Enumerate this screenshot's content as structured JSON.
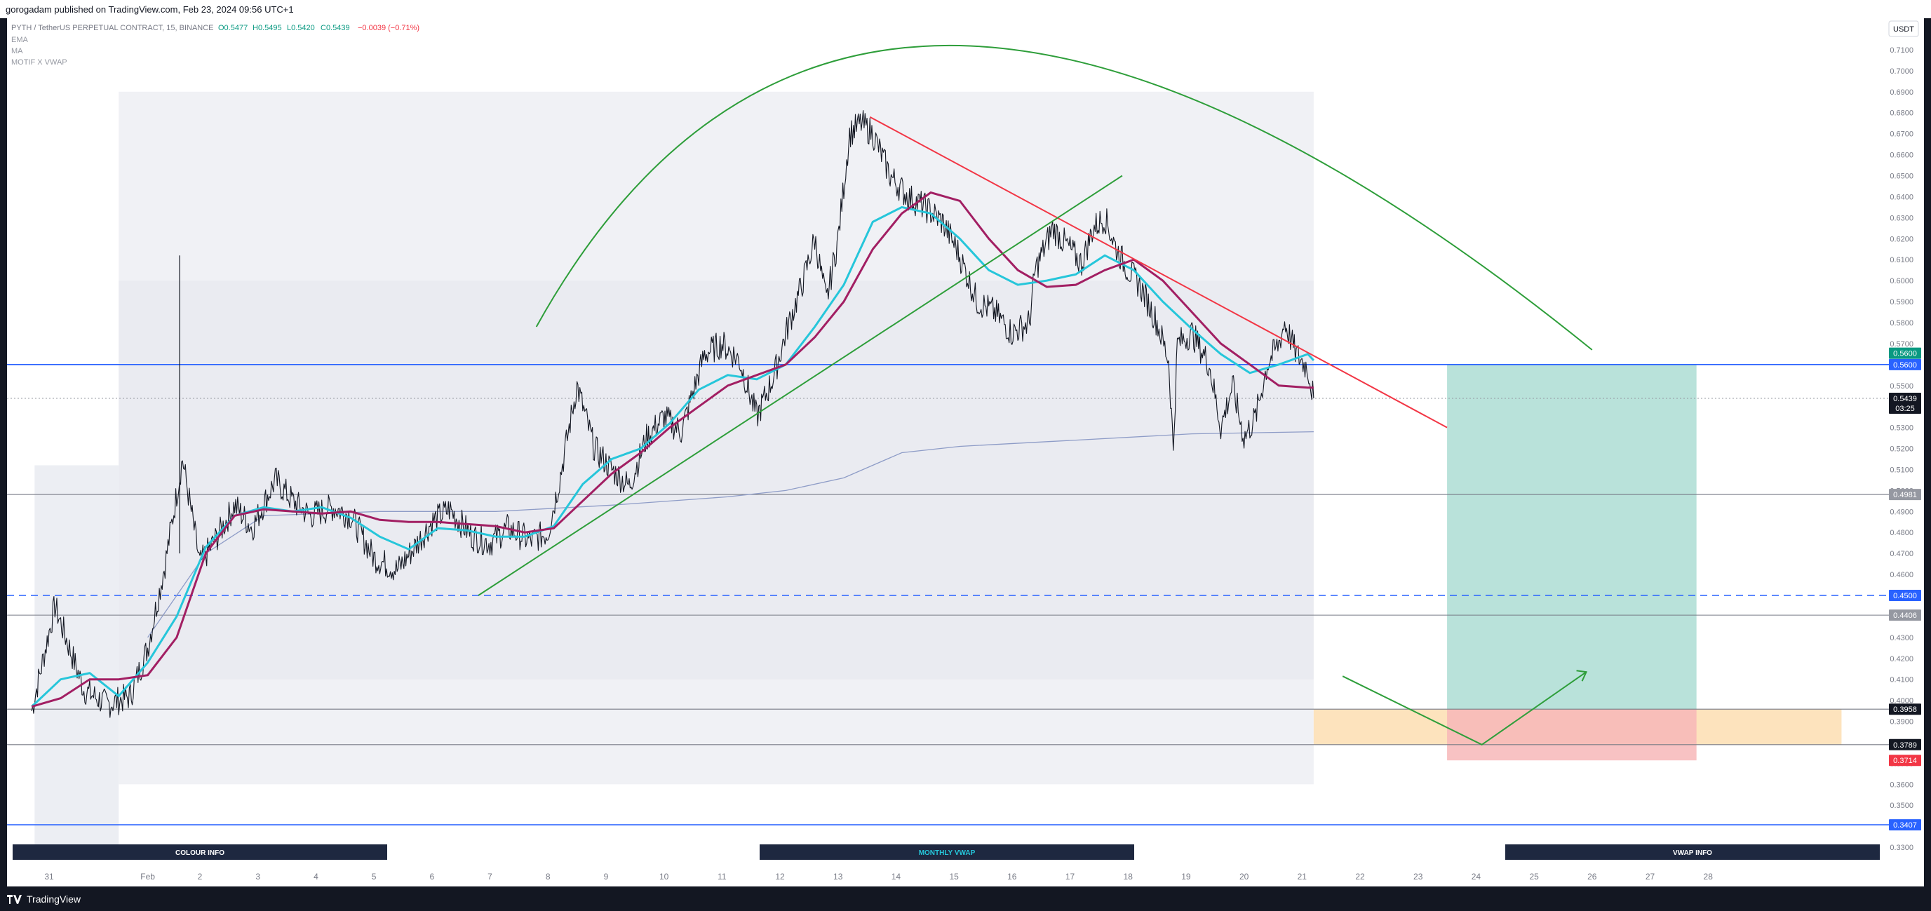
{
  "header": {
    "published": "gorogadam published on TradingView.com, Feb 23, 2024 09:56 UTC+1"
  },
  "legend": {
    "symbol": "PYTH / TetherUS PERPETUAL CONTRACT, 15, BINANCE",
    "open": "O0.5477",
    "high": "H0.5495",
    "low": "L0.5420",
    "close": "C0.5439",
    "change": "−0.0039 (−0.71%)",
    "indicators": [
      "EMA",
      "MA",
      "MOTIF X VWAP"
    ]
  },
  "currency": "USDT",
  "info_bars": [
    "COLOUR INFO",
    "MONTHLY VWAP",
    "VWAP INFO"
  ],
  "footer": {
    "brand": "TradingView"
  },
  "colors": {
    "price": "#131722",
    "ema": "#26c6da",
    "ma": "#a21f63",
    "vwap": "#8e9cc7",
    "trend_red": "#f23645",
    "trend_green": "#2e9e3a",
    "level_blue": "#2962ff",
    "target_zone": "#b9e2da",
    "stop_zone": "#f7b7b9",
    "demand_zone": "#fde3bd"
  },
  "chart_data": {
    "type": "line",
    "title": "PYTH / TetherUS PERPETUAL CONTRACT, 15, BINANCE",
    "x_ticks": [
      "31",
      "Feb",
      "2",
      "3",
      "4",
      "5",
      "6",
      "7",
      "8",
      "9",
      "10",
      "11",
      "12",
      "13",
      "14",
      "15",
      "16",
      "17",
      "18",
      "19",
      "20",
      "21",
      "22",
      "23",
      "24",
      "25",
      "26",
      "27",
      "28"
    ],
    "x_range": [
      30.3,
      29.3
    ],
    "ylim": [
      0.326,
      0.716
    ],
    "y_ticks": [
      "0.7100",
      "0.7000",
      "0.6900",
      "0.6800",
      "0.6700",
      "0.6600",
      "0.6500",
      "0.6400",
      "0.6300",
      "0.6200",
      "0.6100",
      "0.6000",
      "0.5900",
      "0.5800",
      "0.5700",
      "0.5600",
      "0.5500",
      "0.5400",
      "0.5300",
      "0.5200",
      "0.5100",
      "0.5000",
      "0.4900",
      "0.4800",
      "0.4700",
      "0.4600",
      "0.4500",
      "0.4400",
      "0.4300",
      "0.4200",
      "0.4100",
      "0.4000",
      "0.3900",
      "0.3800",
      "0.3700",
      "0.3600",
      "0.3500",
      "0.3400",
      "0.3300"
    ],
    "price_series": {
      "name": "PYTH/USDT",
      "points": [
        [
          30.0,
          0.395
        ],
        [
          30.4,
          0.445
        ],
        [
          30.9,
          0.405
        ],
        [
          31.3,
          0.398
        ],
        [
          31.7,
          0.402
        ],
        [
          32.0,
          0.425
        ],
        [
          32.3,
          0.465
        ],
        [
          32.6,
          0.515
        ],
        [
          32.9,
          0.465
        ],
        [
          33.2,
          0.478
        ],
        [
          33.5,
          0.493
        ],
        [
          33.8,
          0.482
        ],
        [
          34.2,
          0.505
        ],
        [
          34.5,
          0.495
        ],
        [
          34.8,
          0.488
        ],
        [
          35.2,
          0.492
        ],
        [
          35.5,
          0.488
        ],
        [
          35.9,
          0.468
        ],
        [
          36.3,
          0.462
        ],
        [
          36.6,
          0.473
        ],
        [
          36.9,
          0.485
        ],
        [
          37.2,
          0.491
        ],
        [
          37.6,
          0.478
        ],
        [
          37.9,
          0.475
        ],
        [
          38.2,
          0.482
        ],
        [
          38.6,
          0.476
        ],
        [
          38.9,
          0.48
        ],
        [
          39.1,
          0.505
        ],
        [
          39.4,
          0.55
        ],
        [
          39.7,
          0.52
        ],
        [
          40.0,
          0.51
        ],
        [
          40.3,
          0.502
        ],
        [
          40.6,
          0.525
        ],
        [
          40.9,
          0.535
        ],
        [
          41.2,
          0.528
        ],
        [
          41.6,
          0.565
        ],
        [
          41.9,
          0.57
        ],
        [
          42.2,
          0.562
        ],
        [
          42.5,
          0.535
        ],
        [
          42.8,
          0.555
        ],
        [
          43.0,
          0.575
        ],
        [
          43.3,
          0.6
        ],
        [
          43.5,
          0.62
        ],
        [
          43.7,
          0.59
        ],
        [
          43.9,
          0.62
        ],
        [
          44.1,
          0.67
        ],
        [
          44.3,
          0.675
        ],
        [
          44.5,
          0.67
        ],
        [
          44.8,
          0.65
        ],
        [
          45.1,
          0.64
        ],
        [
          45.4,
          0.635
        ],
        [
          45.7,
          0.628
        ],
        [
          45.95,
          0.615
        ],
        [
          46.3,
          0.59
        ],
        [
          46.6,
          0.585
        ],
        [
          46.9,
          0.575
        ],
        [
          47.2,
          0.58
        ],
        [
          47.3,
          0.605
        ],
        [
          47.6,
          0.625
        ],
        [
          47.9,
          0.615
        ],
        [
          48.1,
          0.608
        ],
        [
          48.3,
          0.625
        ],
        [
          48.5,
          0.63
        ],
        [
          48.7,
          0.615
        ],
        [
          48.9,
          0.605
        ],
        [
          49.1,
          0.598
        ],
        [
          49.4,
          0.58
        ],
        [
          49.6,
          0.562
        ],
        [
          49.68,
          0.52
        ],
        [
          49.75,
          0.57
        ],
        [
          50.0,
          0.575
        ],
        [
          50.3,
          0.56
        ],
        [
          50.5,
          0.53
        ],
        [
          50.7,
          0.55
        ],
        [
          50.9,
          0.525
        ],
        [
          51.1,
          0.535
        ],
        [
          51.3,
          0.56
        ],
        [
          51.5,
          0.57
        ],
        [
          51.6,
          0.58
        ],
        [
          51.8,
          0.565
        ],
        [
          52.0,
          0.558
        ],
        [
          52.1,
          0.5439
        ]
      ]
    },
    "ema_series": {
      "name": "EMA",
      "points": [
        [
          30.0,
          0.397
        ],
        [
          30.5,
          0.41
        ],
        [
          31.0,
          0.413
        ],
        [
          31.5,
          0.402
        ],
        [
          32.0,
          0.418
        ],
        [
          32.5,
          0.44
        ],
        [
          33.0,
          0.473
        ],
        [
          33.5,
          0.488
        ],
        [
          34.0,
          0.492
        ],
        [
          34.5,
          0.49
        ],
        [
          35.0,
          0.492
        ],
        [
          35.5,
          0.487
        ],
        [
          36.0,
          0.478
        ],
        [
          36.5,
          0.472
        ],
        [
          37.0,
          0.482
        ],
        [
          37.5,
          0.481
        ],
        [
          38.0,
          0.478
        ],
        [
          38.5,
          0.478
        ],
        [
          39.0,
          0.483
        ],
        [
          39.5,
          0.503
        ],
        [
          40.0,
          0.515
        ],
        [
          40.5,
          0.52
        ],
        [
          41.0,
          0.532
        ],
        [
          41.5,
          0.548
        ],
        [
          42.0,
          0.555
        ],
        [
          42.5,
          0.553
        ],
        [
          43.0,
          0.56
        ],
        [
          43.5,
          0.578
        ],
        [
          44.0,
          0.598
        ],
        [
          44.5,
          0.628
        ],
        [
          45.0,
          0.635
        ],
        [
          45.5,
          0.632
        ],
        [
          46.0,
          0.62
        ],
        [
          46.5,
          0.605
        ],
        [
          47.0,
          0.598
        ],
        [
          47.5,
          0.6
        ],
        [
          48.0,
          0.603
        ],
        [
          48.5,
          0.612
        ],
        [
          49.0,
          0.605
        ],
        [
          49.5,
          0.59
        ],
        [
          50.0,
          0.577
        ],
        [
          50.5,
          0.565
        ],
        [
          51.0,
          0.556
        ],
        [
          51.5,
          0.56
        ],
        [
          52.0,
          0.565
        ],
        [
          52.1,
          0.562
        ]
      ]
    },
    "ma_series": {
      "name": "MA",
      "points": [
        [
          30.0,
          0.397
        ],
        [
          30.5,
          0.401
        ],
        [
          31.0,
          0.41
        ],
        [
          31.5,
          0.41
        ],
        [
          32.0,
          0.412
        ],
        [
          32.5,
          0.43
        ],
        [
          33.0,
          0.47
        ],
        [
          33.5,
          0.488
        ],
        [
          34.0,
          0.491
        ],
        [
          34.5,
          0.49
        ],
        [
          35.0,
          0.489
        ],
        [
          35.5,
          0.49
        ],
        [
          36.0,
          0.486
        ],
        [
          36.5,
          0.485
        ],
        [
          37.0,
          0.485
        ],
        [
          37.5,
          0.484
        ],
        [
          38.0,
          0.483
        ],
        [
          38.5,
          0.48
        ],
        [
          39.0,
          0.482
        ],
        [
          39.5,
          0.495
        ],
        [
          40.0,
          0.508
        ],
        [
          40.5,
          0.518
        ],
        [
          41.0,
          0.53
        ],
        [
          41.5,
          0.54
        ],
        [
          42.0,
          0.55
        ],
        [
          42.5,
          0.555
        ],
        [
          43.0,
          0.56
        ],
        [
          43.5,
          0.573
        ],
        [
          44.0,
          0.59
        ],
        [
          44.5,
          0.615
        ],
        [
          45.0,
          0.632
        ],
        [
          45.5,
          0.642
        ],
        [
          46.0,
          0.638
        ],
        [
          46.5,
          0.62
        ],
        [
          47.0,
          0.605
        ],
        [
          47.5,
          0.597
        ],
        [
          48.0,
          0.598
        ],
        [
          48.5,
          0.605
        ],
        [
          49.0,
          0.61
        ],
        [
          49.5,
          0.6
        ],
        [
          50.0,
          0.585
        ],
        [
          50.5,
          0.57
        ],
        [
          51.0,
          0.56
        ],
        [
          51.5,
          0.55
        ],
        [
          52.0,
          0.549
        ],
        [
          52.1,
          0.549
        ]
      ]
    },
    "vwap_series": {
      "name": "Monthly VWAP",
      "points": [
        [
          32.0,
          0.43
        ],
        [
          33.0,
          0.47
        ],
        [
          34.0,
          0.488
        ],
        [
          36.0,
          0.49
        ],
        [
          38.0,
          0.49
        ],
        [
          40.0,
          0.493
        ],
        [
          42.0,
          0.497
        ],
        [
          43.0,
          0.5
        ],
        [
          44.0,
          0.506
        ],
        [
          45.0,
          0.518
        ],
        [
          46.0,
          0.521
        ],
        [
          48.0,
          0.524
        ],
        [
          50.0,
          0.527
        ],
        [
          52.1,
          0.528
        ]
      ]
    },
    "horizontal_levels": [
      {
        "value": 0.56,
        "style": "solid",
        "color": "#2962ff",
        "label": "0.5600"
      },
      {
        "value": 0.4981,
        "style": "solid",
        "color": "#787b86",
        "label": "0.4981"
      },
      {
        "value": 0.45,
        "style": "dashed",
        "color": "#2962ff",
        "label": "0.4500"
      },
      {
        "value": 0.4406,
        "style": "solid",
        "color": "#787b86",
        "label": "0.4406"
      },
      {
        "value": 0.3958,
        "style": "solid",
        "color": "#787b86",
        "label": "0.3958"
      },
      {
        "value": 0.3789,
        "style": "solid",
        "color": "#787b86",
        "label": "0.3789"
      },
      {
        "value": 0.3407,
        "style": "solid",
        "color": "#2962ff",
        "label": "0.3407"
      }
    ],
    "price_tags": [
      {
        "value": 0.5654,
        "label": "0.5600",
        "color": "#089981"
      },
      {
        "value": 0.56,
        "label": "0.5600",
        "color": "#2962ff"
      },
      {
        "value": 0.5439,
        "label": "0.5439",
        "color": "#131722",
        "countdown": "03:25"
      },
      {
        "value": 0.4981,
        "label": "0.4981",
        "color": "#9598a1"
      },
      {
        "value": 0.45,
        "label": "0.4500",
        "color": "#2962ff"
      },
      {
        "value": 0.4406,
        "label": "0.4406",
        "color": "#9598a1"
      },
      {
        "value": 0.3958,
        "label": "0.3958",
        "color": "#131722"
      },
      {
        "value": 0.3789,
        "label": "0.3789",
        "color": "#131722"
      },
      {
        "value": 0.3714,
        "label": "0.3714",
        "color": "#f23645"
      },
      {
        "value": 0.3407,
        "label": "0.3407",
        "color": "#2962ff"
      }
    ],
    "trendlines": [
      {
        "type": "resistance",
        "color": "#f23645",
        "from": [
          44.45,
          0.678
        ],
        "to": [
          54.4,
          0.53
        ]
      },
      {
        "type": "support",
        "color": "#2e9e3a",
        "from": [
          37.7,
          0.45
        ],
        "to": [
          48.8,
          0.65
        ]
      }
    ],
    "arc": {
      "color": "#2e9e3a",
      "from": [
        38.7,
        0.578
      ],
      "peak": [
        46.0,
        0.712
      ],
      "to": [
        56.9,
        0.567
      ]
    },
    "projection": {
      "color": "#2e9e3a",
      "points": [
        [
          52.6,
          0.4115
        ],
        [
          55.0,
          0.3789
        ],
        [
          56.8,
          0.4135
        ]
      ]
    },
    "position": {
      "entry": 0.3958,
      "target": 0.56,
      "stop": 0.3714,
      "x_from": 54.4,
      "x_to": 58.7
    },
    "demand_zone": {
      "from_x": 52.1,
      "to_x": 61.2,
      "low": 0.3789,
      "high": 0.3958
    },
    "grid": false,
    "legend_position": "top-left"
  }
}
